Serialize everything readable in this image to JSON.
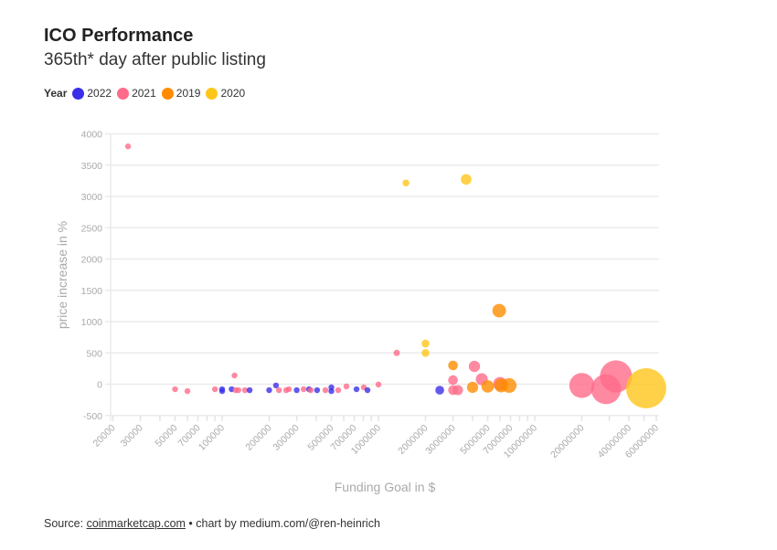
{
  "header": {
    "title": "ICO Performance",
    "subtitle": "365th* day after public listing"
  },
  "legend": {
    "title": "Year",
    "items": [
      {
        "label": "2022",
        "color": "#3b2ee8"
      },
      {
        "label": "2021",
        "color": "#ff6b8a"
      },
      {
        "label": "2019",
        "color": "#ff8c00"
      },
      {
        "label": "2020",
        "color": "#ffc61a"
      }
    ]
  },
  "footer": {
    "source_prefix": "Source: ",
    "source_link": "coinmarketcap.com",
    "credit": " • chart by medium.com/@ren-heinrich"
  },
  "chart_data": {
    "type": "scatter",
    "title": "ICO Performance",
    "subtitle": "365th* day after public listing",
    "xlabel": "Funding Goal in $",
    "ylabel": "price increase in %",
    "xscale": "log",
    "xlim": [
      20000,
      60000000
    ],
    "ylim": [
      -500,
      4000
    ],
    "grid": true,
    "legend_position": "top-left",
    "x_ticks": [
      "20000",
      "30000",
      "50000",
      "70000",
      "100000",
      "200000",
      "300000",
      "500000",
      "700000",
      "1000000",
      "2000000",
      "3000000",
      "5000000",
      "7000000",
      "10000000",
      "20000000",
      "40000000",
      "60000000"
    ],
    "x_minor_ticks": [
      40000,
      60000,
      80000,
      90000,
      400000,
      600000,
      800000,
      900000,
      4000000,
      6000000,
      8000000,
      9000000,
      30000000,
      50000000
    ],
    "y_ticks": [
      "-500",
      "0",
      "500",
      "1000",
      "1500",
      "2000",
      "2500",
      "3000",
      "3500",
      "4000"
    ],
    "size_encodes": "funding goal",
    "series": [
      {
        "name": "2022",
        "color": "#3b2ee8",
        "points": [
          {
            "x": 100000,
            "y": -80
          },
          {
            "x": 100000,
            "y": -110
          },
          {
            "x": 115000,
            "y": -80
          },
          {
            "x": 150000,
            "y": -95
          },
          {
            "x": 200000,
            "y": -95
          },
          {
            "x": 221000,
            "y": -20
          },
          {
            "x": 300000,
            "y": -95
          },
          {
            "x": 360000,
            "y": -80
          },
          {
            "x": 405000,
            "y": -95
          },
          {
            "x": 500000,
            "y": -50
          },
          {
            "x": 500000,
            "y": -110
          },
          {
            "x": 724000,
            "y": -80
          },
          {
            "x": 851000,
            "y": -95
          },
          {
            "x": 2466000,
            "y": -95
          }
        ]
      },
      {
        "name": "2021",
        "color": "#ff6b8a",
        "points": [
          {
            "x": 25000,
            "y": 3800
          },
          {
            "x": 50000,
            "y": -80
          },
          {
            "x": 60000,
            "y": -110
          },
          {
            "x": 90000,
            "y": -80
          },
          {
            "x": 120000,
            "y": 140
          },
          {
            "x": 122000,
            "y": -95
          },
          {
            "x": 127000,
            "y": -95
          },
          {
            "x": 140000,
            "y": -95
          },
          {
            "x": 231000,
            "y": -95
          },
          {
            "x": 257000,
            "y": -95
          },
          {
            "x": 267000,
            "y": -80
          },
          {
            "x": 332000,
            "y": -80
          },
          {
            "x": 369000,
            "y": -95
          },
          {
            "x": 458000,
            "y": -95
          },
          {
            "x": 553000,
            "y": -95
          },
          {
            "x": 624000,
            "y": -35
          },
          {
            "x": 806000,
            "y": -50
          },
          {
            "x": 1000000,
            "y": -5
          },
          {
            "x": 1309000,
            "y": 500
          },
          {
            "x": 3000000,
            "y": 65
          },
          {
            "x": 3000000,
            "y": -95
          },
          {
            "x": 3227000,
            "y": -95
          },
          {
            "x": 4111000,
            "y": 285
          },
          {
            "x": 4580000,
            "y": 80
          },
          {
            "x": 6000000,
            "y": 7
          },
          {
            "x": 20000000,
            "y": -20
          },
          {
            "x": 28600000,
            "y": -80
          },
          {
            "x": 33100000,
            "y": 125
          }
        ]
      },
      {
        "name": "2019",
        "color": "#ff8c00",
        "points": [
          {
            "x": 3000000,
            "y": 300
          },
          {
            "x": 4000000,
            "y": -50
          },
          {
            "x": 5000000,
            "y": -35
          },
          {
            "x": 5920000,
            "y": 1175
          },
          {
            "x": 6100000,
            "y": -20
          },
          {
            "x": 6860000,
            "y": -20
          }
        ]
      },
      {
        "name": "2020",
        "color": "#ffc61a",
        "points": [
          {
            "x": 1500000,
            "y": 3215
          },
          {
            "x": 2000000,
            "y": 650
          },
          {
            "x": 2000000,
            "y": 500
          },
          {
            "x": 3640000,
            "y": 3272
          },
          {
            "x": 51600000,
            "y": -65
          }
        ]
      }
    ]
  }
}
